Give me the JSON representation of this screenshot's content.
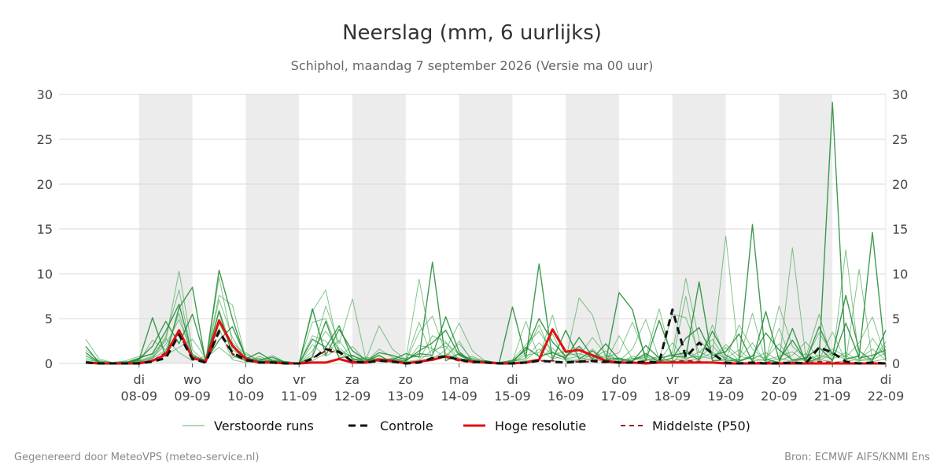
{
  "chart_data": {
    "type": "line",
    "title": "Neerslag (mm, 6 uurlijks)",
    "subtitle": "Schiphol, maandag  7 september 2026 (Versie ma 00 uur)",
    "ylim": [
      0,
      30
    ],
    "yticks": [
      0,
      5,
      10,
      15,
      20,
      25,
      30
    ],
    "x_steps": 60,
    "x_ticks": [
      {
        "step": 4,
        "day": "di",
        "date": "08-09"
      },
      {
        "step": 8,
        "day": "wo",
        "date": "09-09"
      },
      {
        "step": 12,
        "day": "do",
        "date": "10-09"
      },
      {
        "step": 16,
        "day": "vr",
        "date": "11-09"
      },
      {
        "step": 20,
        "day": "za",
        "date": "12-09"
      },
      {
        "step": 24,
        "day": "zo",
        "date": "13-09"
      },
      {
        "step": 28,
        "day": "ma",
        "date": "14-09"
      },
      {
        "step": 32,
        "day": "di",
        "date": "15-09"
      },
      {
        "step": 36,
        "day": "wo",
        "date": "16-09"
      },
      {
        "step": 40,
        "day": "do",
        "date": "17-09"
      },
      {
        "step": 44,
        "day": "vr",
        "date": "18-09"
      },
      {
        "step": 48,
        "day": "za",
        "date": "19-09"
      },
      {
        "step": 52,
        "day": "zo",
        "date": "20-09"
      },
      {
        "step": 56,
        "day": "ma",
        "date": "21-09"
      },
      {
        "step": 60,
        "day": "di",
        "date": "22-09"
      }
    ],
    "weekend_bands": [
      [
        4,
        8
      ],
      [
        12,
        16
      ],
      [
        20,
        24
      ],
      [
        28,
        32
      ],
      [
        36,
        40
      ],
      [
        44,
        48
      ],
      [
        52,
        56
      ]
    ],
    "colors": {
      "perturbed": "#2e9e3f",
      "control": "#111111",
      "high_res": "#e01010",
      "median": "#aa1111",
      "band": "#ececec",
      "grid": "#d8d8d8"
    },
    "series": [
      {
        "name": "Controle",
        "key": "control",
        "values": [
          0.1,
          0.0,
          0.0,
          0.0,
          0.0,
          0.2,
          0.6,
          3.2,
          0.5,
          0.1,
          3.6,
          1.2,
          0.4,
          0.1,
          0.1,
          0.0,
          0.0,
          0.5,
          1.6,
          1.3,
          0.2,
          0.1,
          0.3,
          0.2,
          0.0,
          0.1,
          0.6,
          0.8,
          0.4,
          0.2,
          0.1,
          0.0,
          0.0,
          0.1,
          0.3,
          0.2,
          0.1,
          0.2,
          0.3,
          0.2,
          0.1,
          0.1,
          0.2,
          0.1,
          6.0,
          0.7,
          2.3,
          1.1,
          0.1,
          0.0,
          0.1,
          0.0,
          0.0,
          0.1,
          0.0,
          1.8,
          1.2,
          0.2,
          0.0,
          0.1,
          0.0
        ]
      },
      {
        "name": "Hoge resolutie",
        "key": "high_res",
        "values": [
          0.1,
          0.0,
          0.0,
          0.0,
          0.0,
          0.3,
          1.0,
          3.7,
          0.6,
          0.2,
          4.8,
          2.0,
          0.5,
          0.1,
          0.1,
          0.0,
          0.0,
          0.1,
          0.1,
          0.5,
          0.1,
          0.1,
          0.4,
          0.3,
          0.0,
          0.2,
          0.4,
          0.8,
          0.4,
          0.2,
          0.1,
          0.0,
          0.0,
          0.1,
          0.4,
          3.8,
          1.3,
          1.5,
          0.9,
          0.3,
          0.1,
          0.1,
          0.0,
          0.1,
          0.1,
          0.1,
          0.1,
          0.1,
          0.0,
          0.0,
          0.0,
          0.0,
          0.0,
          0.0,
          0.0,
          0.0,
          0.0,
          0.0,
          0.0,
          0.0,
          0.0
        ]
      },
      {
        "name": "Middelste (P50)",
        "key": "median",
        "values": [
          0.1,
          0.0,
          0.0,
          0.0,
          0.1,
          0.3,
          1.2,
          3.2,
          0.7,
          0.2,
          3.4,
          1.1,
          0.3,
          0.1,
          0.1,
          0.0,
          0.0,
          0.6,
          1.4,
          1.2,
          0.2,
          0.1,
          0.3,
          0.2,
          0.0,
          0.2,
          0.6,
          0.7,
          0.3,
          0.1,
          0.1,
          0.0,
          0.0,
          0.1,
          0.3,
          0.3,
          0.1,
          0.2,
          0.2,
          0.1,
          0.1,
          0.1,
          0.1,
          0.1,
          0.2,
          0.3,
          0.2,
          0.1,
          0.1,
          0.0,
          0.1,
          0.1,
          0.1,
          0.1,
          0.0,
          0.2,
          0.1,
          0.1,
          0.0,
          0.1,
          0.0
        ]
      },
      {
        "name": "Verstoorde runs",
        "key": "perturbed",
        "members": [
          [
            2.7,
            0.5,
            0.1,
            0.3,
            0.8,
            1.0,
            2.5,
            10.3,
            1.5,
            0.2,
            9.6,
            2.3,
            1.0,
            0.3,
            0.2,
            0.1,
            0.0,
            5.8,
            8.2,
            1.3,
            0.8,
            0.4,
            4.2,
            1.6,
            0.4,
            9.4,
            1.2,
            2.3,
            1.0,
            0.5,
            0.3,
            0.1,
            0.1,
            1.2,
            4.3,
            0.8,
            0.4,
            7.3,
            5.4,
            0.7,
            1.2,
            4.6,
            0.8,
            0.2,
            1.2,
            9.5,
            2.6,
            1.1,
            14.2,
            0.4,
            0.6,
            0.3,
            0.1,
            12.9,
            0.7,
            0.4,
            0.2,
            12.7,
            0.4,
            0.6,
            1.9
          ],
          [
            1.9,
            0.1,
            0.0,
            0.1,
            0.4,
            5.1,
            0.8,
            6.2,
            8.5,
            0.1,
            10.4,
            5.0,
            0.5,
            1.2,
            0.3,
            0.2,
            0.0,
            6.1,
            0.9,
            3.8,
            1.4,
            0.4,
            0.5,
            0.4,
            1.1,
            0.7,
            11.3,
            0.3,
            1.1,
            0.3,
            0.1,
            0.0,
            6.3,
            0.6,
            11.1,
            0.4,
            3.7,
            0.5,
            1.4,
            0.2,
            7.9,
            6.0,
            0.3,
            4.8,
            0.8,
            0.7,
            9.1,
            0.3,
            0.4,
            0.2,
            15.5,
            0.5,
            0.1,
            3.9,
            0.1,
            0.6,
            29.1,
            0.5,
            0.8,
            14.6,
            0.3
          ],
          [
            0.8,
            0.3,
            0.1,
            0.2,
            0.2,
            0.6,
            1.4,
            5.6,
            0.4,
            0.5,
            7.6,
            6.5,
            0.6,
            0.3,
            0.9,
            0.1,
            0.0,
            1.0,
            6.4,
            2.2,
            7.2,
            0.5,
            0.4,
            0.2,
            0.3,
            4.6,
            0.5,
            1.5,
            4.5,
            1.4,
            0.2,
            0.1,
            0.2,
            4.7,
            0.6,
            5.4,
            0.3,
            0.2,
            0.6,
            0.1,
            3.1,
            0.5,
            0.7,
            6.1,
            0.3,
            7.5,
            0.2,
            4.3,
            0.6,
            0.4,
            5.6,
            0.2,
            3.9,
            0.1,
            0.7,
            5.5,
            0.1,
            0.3,
            10.5,
            0.4,
            1.2
          ],
          [
            0.4,
            0.2,
            0.0,
            0.1,
            0.3,
            0.8,
            3.0,
            8.2,
            0.7,
            0.3,
            6.0,
            1.5,
            0.6,
            0.2,
            0.1,
            0.0,
            0.0,
            4.6,
            5.0,
            1.2,
            0.3,
            0.1,
            1.6,
            0.7,
            0.2,
            3.5,
            5.3,
            1.1,
            0.6,
            0.2,
            0.1,
            0.0,
            0.4,
            2.1,
            3.6,
            1.3,
            0.5,
            0.8,
            2.9,
            1.0,
            0.3,
            1.6,
            4.9,
            0.5,
            5.5,
            5.1,
            1.2,
            2.7,
            0.4,
            4.3,
            1.6,
            0.3,
            6.4,
            1.9,
            0.5,
            3.4,
            1.1,
            0.7,
            2.3,
            5.2,
            0.6
          ],
          [
            1.2,
            0.1,
            0.0,
            0.0,
            0.5,
            1.9,
            4.7,
            2.2,
            5.5,
            0.4,
            5.8,
            0.9,
            0.3,
            0.4,
            0.7,
            0.1,
            0.0,
            2.7,
            1.8,
            4.2,
            0.5,
            0.2,
            0.9,
            0.1,
            0.3,
            1.4,
            2.3,
            3.7,
            0.9,
            0.3,
            0.2,
            0.1,
            0.3,
            1.5,
            5.0,
            2.4,
            0.8,
            1.9,
            0.5,
            2.2,
            0.4,
            0.3,
            1.1,
            0.2,
            0.6,
            2.8,
            4.0,
            0.9,
            1.3,
            3.3,
            0.2,
            5.8,
            0.4,
            2.6,
            0.3,
            4.1,
            0.9,
            7.6,
            1.4,
            0.3,
            3.7
          ],
          [
            0.3,
            0.0,
            0.0,
            0.1,
            0.1,
            0.7,
            2.1,
            4.9,
            1.1,
            0.1,
            4.4,
            1.8,
            0.2,
            0.1,
            0.2,
            0.0,
            0.0,
            3.1,
            2.5,
            0.8,
            1.9,
            0.3,
            0.6,
            0.3,
            0.1,
            2.0,
            1.7,
            0.6,
            2.5,
            0.2,
            0.1,
            0.0,
            0.1,
            0.9,
            1.2,
            3.3,
            0.2,
            0.4,
            1.6,
            0.3,
            0.2,
            0.5,
            0.3,
            0.8,
            0.1,
            1.5,
            0.6,
            2.0,
            0.3,
            0.5,
            2.3,
            0.1,
            0.6,
            0.2,
            1.1,
            0.4,
            3.5,
            0.2,
            0.5,
            1.6,
            0.4
          ],
          [
            0.6,
            0.2,
            0.0,
            0.0,
            0.2,
            2.6,
            1.5,
            3.4,
            0.6,
            0.2,
            7.1,
            2.9,
            0.4,
            0.6,
            0.1,
            0.1,
            0.0,
            1.4,
            3.6,
            1.5,
            0.3,
            0.6,
            0.2,
            0.5,
            0.2,
            0.4,
            3.1,
            2.4,
            0.4,
            0.6,
            0.1,
            0.0,
            0.2,
            0.6,
            2.3,
            0.9,
            1.4,
            0.7,
            0.3,
            0.9,
            0.1,
            0.8,
            0.4,
            0.3,
            2.3,
            0.4,
            1.3,
            0.6,
            2.1,
            0.8,
            0.5,
            1.2,
            0.3,
            0.9,
            2.4,
            0.5,
            1.6,
            0.8,
            0.2,
            2.8,
            0.7
          ],
          [
            0.2,
            0.1,
            0.0,
            0.1,
            0.6,
            1.1,
            3.6,
            6.6,
            0.9,
            0.3,
            2.6,
            4.1,
            0.7,
            0.2,
            0.3,
            0.1,
            0.0,
            0.7,
            4.7,
            0.6,
            0.9,
            0.2,
            1.2,
            0.9,
            0.4,
            1.1,
            0.9,
            5.2,
            1.3,
            0.1,
            0.3,
            0.0,
            0.1,
            1.8,
            0.8,
            1.2,
            0.6,
            2.9,
            0.8,
            0.4,
            0.6,
            0.2,
            2.0,
            0.6,
            0.9,
            1.2,
            0.4,
            3.6,
            0.9,
            0.2,
            0.8,
            3.4,
            1.5,
            0.4,
            0.6,
            1.8,
            0.3,
            4.5,
            0.6,
            0.9,
            1.5
          ],
          [
            1.5,
            0.3,
            0.1,
            0.2,
            0.1,
            0.4,
            0.9,
            1.8,
            2.7,
            0.6,
            1.8,
            0.6,
            1.2,
            0.3,
            0.5,
            0.2,
            0.0,
            0.3,
            1.1,
            2.6,
            0.4,
            0.7,
            0.4,
            0.3,
            0.6,
            0.8,
            0.7,
            0.9,
            2.2,
            0.4,
            0.2,
            0.1,
            0.3,
            0.4,
            1.6,
            0.5,
            0.9,
            1.1,
            0.6,
            1.4,
            0.2,
            0.6,
            0.5,
            0.4,
            0.3,
            0.6,
            0.8,
            0.5,
            1.8,
            0.3,
            0.9,
            0.6,
            2.2,
            0.3,
            0.4,
            0.9,
            0.5,
            1.2,
            0.3,
            0.4,
            2.4
          ],
          [
            0.9,
            0.0,
            0.0,
            0.0,
            0.3,
            0.5,
            2.8,
            1.2,
            0.3,
            0.8,
            3.9,
            0.4,
            0.1,
            0.8,
            0.2,
            0.0,
            0.0,
            2.1,
            0.8,
            1.7,
            0.6,
            0.1,
            0.3,
            0.6,
            0.1,
            0.3,
            1.5,
            1.9,
            0.3,
            0.8,
            0.1,
            0.0,
            0.1,
            0.3,
            0.5,
            1.7,
            0.4,
            0.3,
            1.0,
            0.6,
            0.4,
            0.3,
            0.9,
            0.5,
            0.2,
            0.3,
            0.5,
            1.2,
            0.6,
            1.5,
            0.3,
            0.4,
            0.8,
            1.3,
            0.2,
            0.3,
            1.2,
            0.4,
            0.9,
            0.2,
            0.5
          ]
        ]
      }
    ]
  },
  "legend": [
    {
      "key": "perturbed",
      "label": "Verstoorde runs"
    },
    {
      "key": "control",
      "label": "Controle"
    },
    {
      "key": "high_res",
      "label": "Hoge resolutie"
    },
    {
      "key": "median",
      "label": "Middelste (P50)"
    }
  ],
  "footer": {
    "left": "Gegenereerd door MeteoVPS (meteo-service.nl)",
    "right": "Bron: ECMWF AIFS/KNMI Ens"
  }
}
